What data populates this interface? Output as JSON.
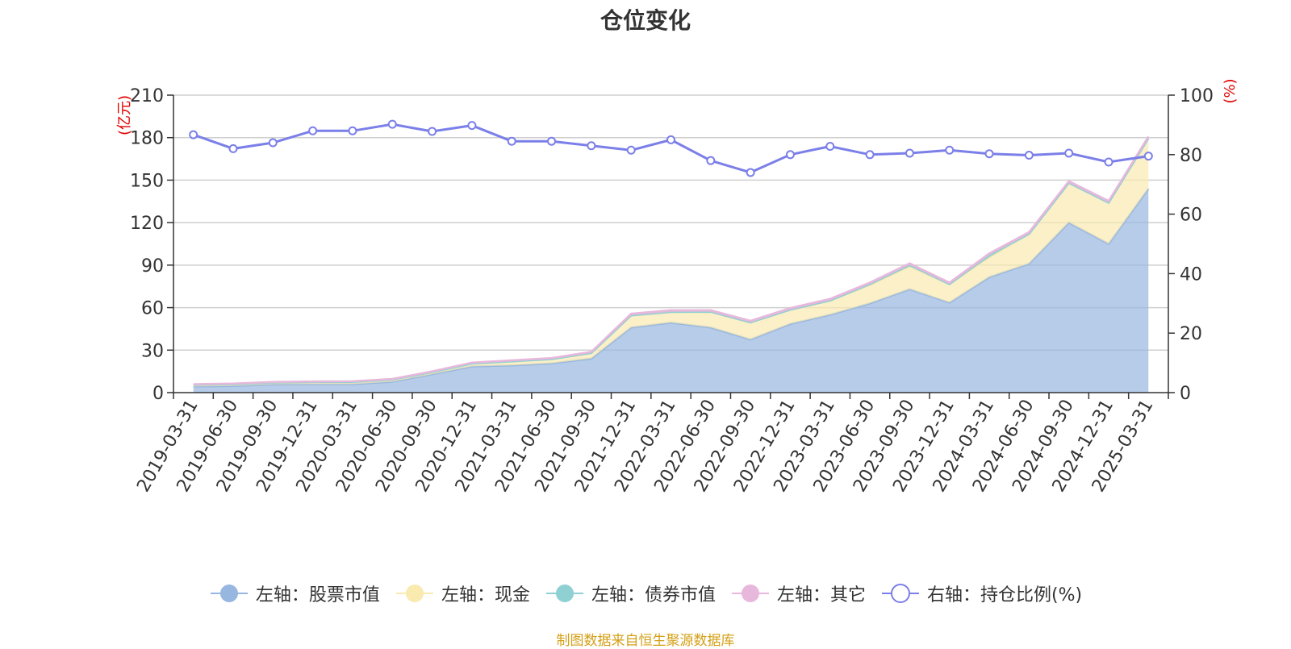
{
  "chart_data": {
    "type": "area",
    "title": "仓位变化",
    "ylabel_left": "(亿元)",
    "ylabel_right": "(%)",
    "ylim_left": [
      0,
      210
    ],
    "yticks_left": [
      0,
      30,
      60,
      90,
      120,
      150,
      180,
      210
    ],
    "ylim_right": [
      0,
      100
    ],
    "yticks_right": [
      0,
      20,
      40,
      60,
      80,
      100
    ],
    "grid": true,
    "legend_position": "bottom",
    "categories": [
      "2019-03-31",
      "2019-06-30",
      "2019-09-30",
      "2019-12-31",
      "2020-03-31",
      "2020-06-30",
      "2020-09-30",
      "2020-12-31",
      "2021-03-31",
      "2021-06-30",
      "2021-09-30",
      "2021-12-31",
      "2022-03-31",
      "2022-06-30",
      "2022-09-30",
      "2022-12-31",
      "2023-03-31",
      "2023-06-30",
      "2023-09-30",
      "2023-12-31",
      "2024-03-31",
      "2024-06-30",
      "2024-09-30",
      "2024-12-31",
      "2025-03-31"
    ],
    "series": [
      {
        "name": "左轴：股票市值",
        "axis": "left",
        "kind": "area",
        "color": "#97b6e0",
        "values": [
          4.3,
          4.7,
          5.8,
          6.0,
          6.0,
          7.7,
          13.0,
          18.5,
          19.2,
          20.6,
          24.0,
          46.0,
          49.4,
          46.0,
          37.5,
          48.5,
          55.0,
          63.0,
          73.0,
          63.5,
          81.5,
          91.0,
          120.0,
          105.0,
          144.0
        ]
      },
      {
        "name": "左轴：现金",
        "axis": "left",
        "kind": "area",
        "color": "#f9eab0",
        "values": [
          1.3,
          1.3,
          1.3,
          1.5,
          1.5,
          1.5,
          1.5,
          2.0,
          2.8,
          3.0,
          4.0,
          8.5,
          7.5,
          11.0,
          12.0,
          10.0,
          10.0,
          13.0,
          16.0,
          13.0,
          14.0,
          21.0,
          28.0,
          29.0,
          35.5
        ]
      },
      {
        "name": "左轴：债券市值",
        "axis": "left",
        "kind": "area",
        "color": "#8fd0d3",
        "values": [
          0,
          0,
          0,
          0,
          0,
          0,
          0,
          0,
          0,
          0,
          0,
          0,
          0,
          0,
          0,
          0,
          0,
          0.5,
          1.0,
          0,
          1.5,
          0,
          0,
          0,
          0
        ]
      },
      {
        "name": "左轴：其它",
        "axis": "left",
        "kind": "area",
        "color": "#e8b8dc",
        "values": [
          0.4,
          0.4,
          0.4,
          0.4,
          0.5,
          0.5,
          0.5,
          0.7,
          0.8,
          0.8,
          0.8,
          1.2,
          1.3,
          1.2,
          1.2,
          1.2,
          1.2,
          1.2,
          1.2,
          1.2,
          1.3,
          1.3,
          1.3,
          1.3,
          1.3
        ]
      },
      {
        "name": "右轴：持仓比例(%)",
        "axis": "right",
        "kind": "line",
        "color": "#7b7fe8",
        "values": [
          86.7,
          82.0,
          84.0,
          88.0,
          88.0,
          90.2,
          87.8,
          89.8,
          84.5,
          84.5,
          83.0,
          81.5,
          85.0,
          78.0,
          74.0,
          80.0,
          82.8,
          80.0,
          80.5,
          81.5,
          80.3,
          79.8,
          80.5,
          77.5,
          79.5
        ]
      }
    ]
  },
  "footer": {
    "source": "制图数据来自恒生聚源数据库"
  }
}
